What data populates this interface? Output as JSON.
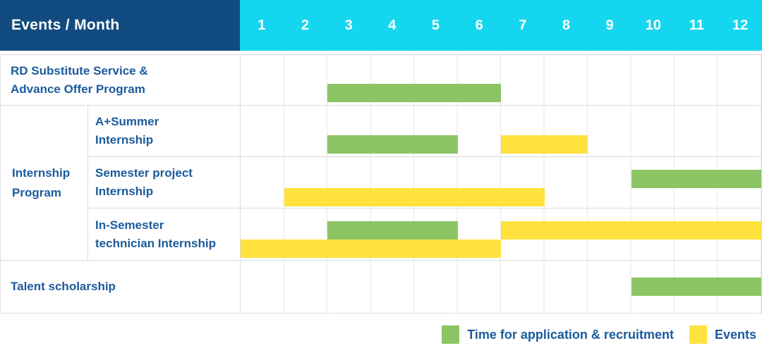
{
  "header": {
    "title": "Events / Month",
    "months": [
      "1",
      "2",
      "3",
      "4",
      "5",
      "6",
      "7",
      "8",
      "9",
      "10",
      "11",
      "12"
    ]
  },
  "colors": {
    "header_navy": "#114B7F",
    "header_cyan": "#15D6EF",
    "recruitment_green": "#8BC564",
    "events_yellow": "#FFE23E",
    "label_blue": "#1B5B9D",
    "grid_line": "#DCDCDC"
  },
  "group": {
    "label": "Internship Program",
    "lines": [
      "Internship",
      "Program"
    ]
  },
  "chart_data": {
    "type": "bar",
    "variant": "gantt-timeline",
    "title": "Events / Month",
    "x_axis": {
      "label": "Month",
      "categories": [
        1,
        2,
        3,
        4,
        5,
        6,
        7,
        8,
        9,
        10,
        11,
        12
      ],
      "range": [
        1,
        12
      ]
    },
    "grid": true,
    "legend_position": "bottom-right",
    "series_legend": [
      {
        "key": "recruitment",
        "name": "Time for application & recruitment",
        "color": "#8BC564"
      },
      {
        "key": "events",
        "name": "Events",
        "color": "#FFE23E"
      }
    ],
    "rows": [
      {
        "kind": "full",
        "group": null,
        "label": "RD Substitute Service & Advance Offer Program",
        "label_lines": [
          "RD Substitute Service &",
          "Advance Offer Program"
        ],
        "bars": [
          {
            "series_key": "recruitment",
            "series": "Time for application & recruitment",
            "start_month": 3,
            "end_month": 6,
            "track": "low"
          }
        ]
      },
      {
        "kind": "sub",
        "group": "Internship Program",
        "label": "A+Summer Internship",
        "label_lines": [
          "A+Summer",
          "Internship"
        ],
        "bars": [
          {
            "series_key": "recruitment",
            "series": "Time for application & recruitment",
            "start_month": 3,
            "end_month": 5,
            "track": "low"
          },
          {
            "series_key": "events",
            "series": "Events",
            "start_month": 7,
            "end_month": 8,
            "track": "low"
          }
        ]
      },
      {
        "kind": "sub",
        "group": "Internship Program",
        "label": "Semester project Internship",
        "label_lines": [
          "Semester project",
          "Internship"
        ],
        "bars": [
          {
            "series_key": "recruitment",
            "series": "Time for application & recruitment",
            "start_month": 10,
            "end_month": 12,
            "track": "top"
          },
          {
            "series_key": "events",
            "series": "Events",
            "start_month": 2,
            "end_month": 7,
            "track": "bottom"
          }
        ]
      },
      {
        "kind": "sub",
        "group": "Internship Program",
        "label": "In-Semester technician Internship",
        "label_lines": [
          "In-Semester",
          "technician Internship"
        ],
        "bars": [
          {
            "series_key": "recruitment",
            "series": "Time for application & recruitment",
            "start_month": 3,
            "end_month": 5,
            "track": "top"
          },
          {
            "series_key": "events",
            "series": "Events",
            "start_month": 7,
            "end_month": 12,
            "track": "top"
          },
          {
            "series_key": "events",
            "series": "Events",
            "start_month": 1,
            "end_month": 6,
            "track": "bottom"
          }
        ]
      },
      {
        "kind": "full",
        "group": null,
        "label": "Talent scholarship",
        "label_lines": [
          "Talent scholarship"
        ],
        "bars": [
          {
            "series_key": "recruitment",
            "series": "Time for application & recruitment",
            "start_month": 10,
            "end_month": 12,
            "track": "mid"
          }
        ]
      }
    ]
  },
  "legend": {
    "items": [
      {
        "label": "Time for application & recruitment",
        "swatch": "green"
      },
      {
        "label": "Events",
        "swatch": "yellow"
      }
    ]
  }
}
